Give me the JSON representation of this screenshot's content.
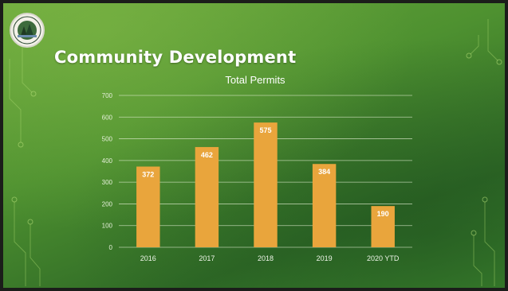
{
  "slide": {
    "title": "Community Development"
  },
  "colors": {
    "bar": "#e9a53c",
    "grid": "#dfeccf"
  },
  "chart_data": {
    "type": "bar",
    "title": "Total Permits",
    "categories": [
      "2016",
      "2017",
      "2018",
      "2019",
      "2020 YTD"
    ],
    "values": [
      372,
      462,
      575,
      384,
      190
    ],
    "data_labels": [
      "372",
      "462",
      "575",
      "384",
      "190"
    ],
    "yticks": [
      0,
      100,
      200,
      300,
      400,
      500,
      600,
      700
    ],
    "ylim": [
      0,
      700
    ],
    "grid": true,
    "legend": "none"
  }
}
